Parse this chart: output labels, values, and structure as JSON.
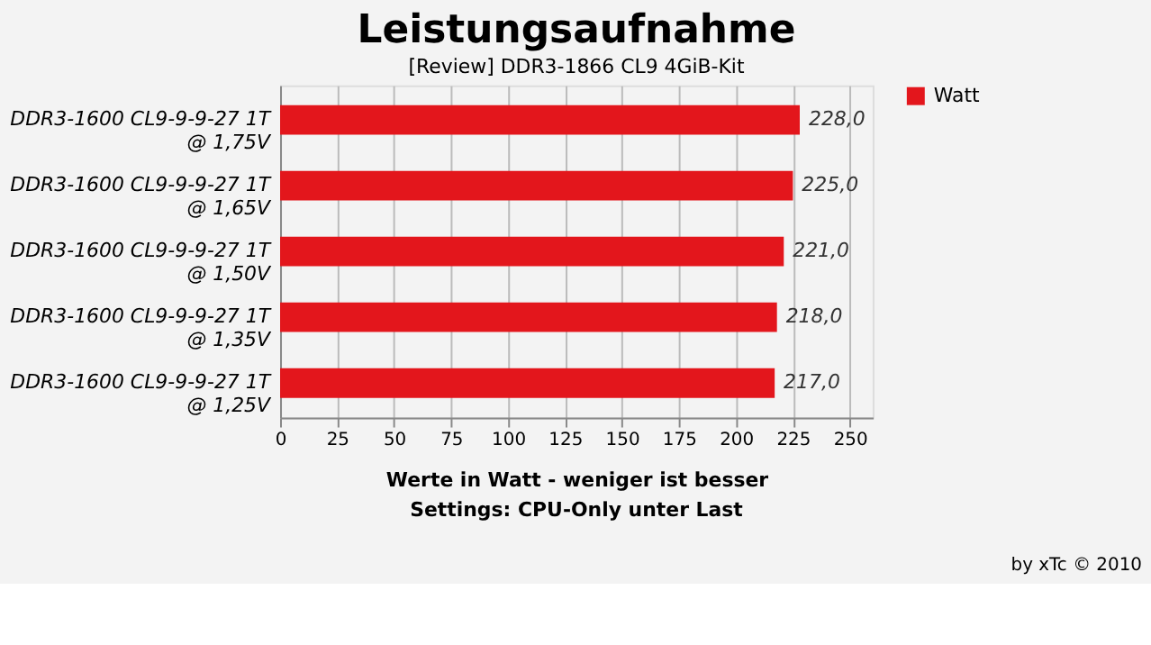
{
  "chart_data": {
    "type": "bar",
    "orientation": "horizontal",
    "title": "Leistungsaufnahme",
    "subtitle": "[Review] DDR3-1866 CL9 4GiB-Kit",
    "categories": [
      "DDR3-1600 CL9-9-9-27 1T @ 1,75V",
      "DDR3-1600 CL9-9-9-27 1T @ 1,65V",
      "DDR3-1600 CL9-9-9-27 1T @ 1,50V",
      "DDR3-1600 CL9-9-9-27 1T @ 1,35V",
      "DDR3-1600 CL9-9-9-27 1T @ 1,25V"
    ],
    "series": [
      {
        "name": "Watt",
        "color": "#e3161c",
        "values": [
          228,
          225,
          221,
          218,
          217
        ],
        "value_labels": [
          "228,0",
          "225,0",
          "221,0",
          "218,0",
          "217,0"
        ]
      }
    ],
    "xlabel": "Werte in Watt - weniger ist besser",
    "annotations": [
      "Settings: CPU-Only unter Last",
      "by xTc © 2010"
    ],
    "xlim": [
      0,
      260
    ],
    "xticks": [
      0,
      25,
      50,
      75,
      100,
      125,
      150,
      175,
      200,
      225,
      250
    ],
    "grid": "x",
    "legend": "right"
  }
}
